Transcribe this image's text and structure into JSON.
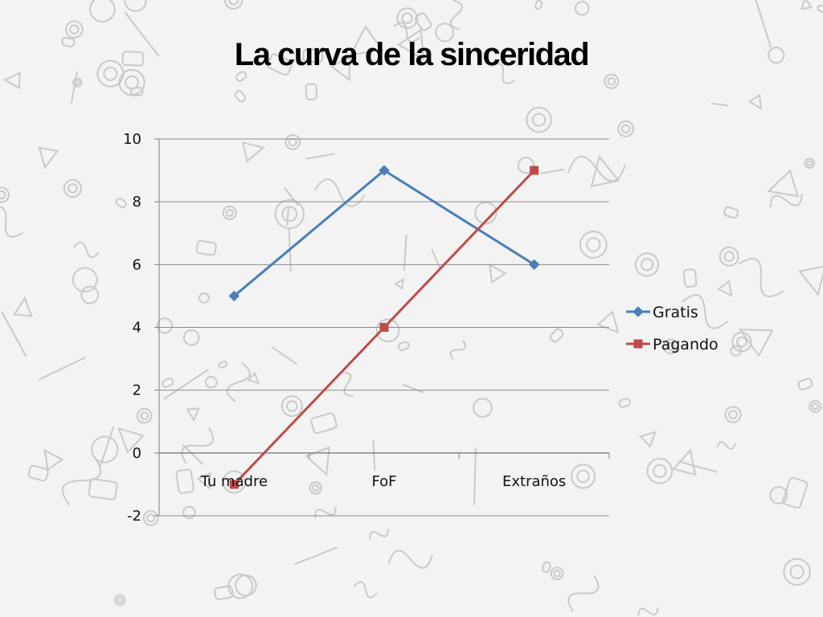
{
  "slide": {
    "title": "La curva de la sinceridad"
  },
  "colors": {
    "background": "#f3f3f3",
    "doodle": "#c9c9c9",
    "grid": "#8c8c8c",
    "axis": "#7f7f7f"
  },
  "chart_data": {
    "type": "line",
    "categories": [
      "Tu madre",
      "FoF",
      "Extraños"
    ],
    "series": [
      {
        "name": "Gratis",
        "values": [
          5,
          9,
          6
        ],
        "color": "#4a7ebb",
        "marker": "diamond"
      },
      {
        "name": "Pagando",
        "values": [
          -1,
          4,
          9
        ],
        "color": "#be4b48",
        "marker": "square"
      }
    ],
    "ylim": [
      -2,
      10
    ],
    "yticks": [
      -2,
      0,
      2,
      4,
      6,
      8,
      10
    ],
    "grid": true,
    "legend": "right"
  }
}
